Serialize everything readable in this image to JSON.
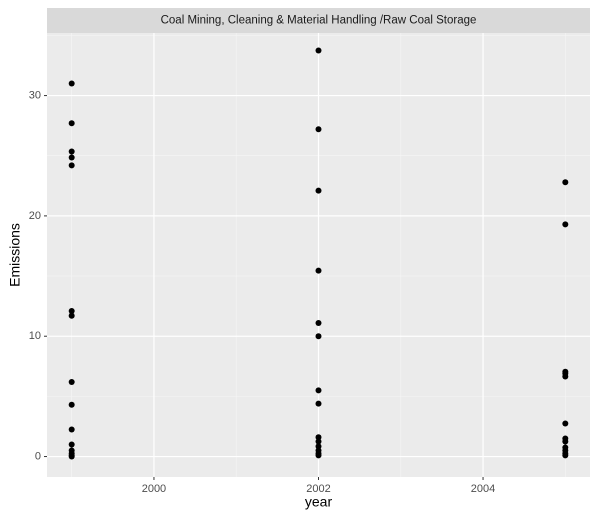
{
  "chart_data": {
    "type": "scatter",
    "strip_title": "Coal Mining, Cleaning & Material Handling /Raw Coal Storage",
    "x_label": "year",
    "y_label": "Emissions",
    "x": [
      1999,
      1999,
      1999,
      1999,
      1999,
      1999,
      1999,
      1999,
      1999,
      1999,
      1999,
      1999,
      1999,
      1999,
      1999,
      2002,
      2002,
      2002,
      2002,
      2002,
      2002,
      2002,
      2002,
      2002,
      2002,
      2002,
      2002,
      2002,
      2002,
      2005,
      2005,
      2005,
      2005,
      2005,
      2005,
      2005,
      2005,
      2005,
      2005,
      2005,
      2005
    ],
    "values": [
      31.0,
      27.7,
      25.35,
      24.85,
      24.2,
      12.1,
      11.7,
      6.2,
      4.3,
      2.25,
      1.0,
      0.5,
      0.25,
      0.1,
      0.0,
      33.75,
      27.2,
      22.1,
      15.45,
      11.1,
      10.0,
      5.5,
      4.4,
      1.6,
      1.25,
      0.85,
      0.5,
      0.25,
      0.1,
      22.8,
      19.3,
      7.05,
      6.9,
      6.65,
      2.75,
      1.5,
      1.25,
      0.75,
      0.5,
      0.25,
      0.1
    ],
    "color": "#000000",
    "xlim": [
      1998.7,
      2005.3
    ],
    "xticks": [
      2000,
      2002,
      2004
    ],
    "xminor": [
      1999,
      2001,
      2003,
      2005
    ],
    "ylim": [
      -1.7,
      35.2
    ],
    "yticks": [
      0,
      10,
      20,
      30
    ],
    "yminor": [
      5,
      15,
      25,
      35
    ],
    "grid": true
  }
}
